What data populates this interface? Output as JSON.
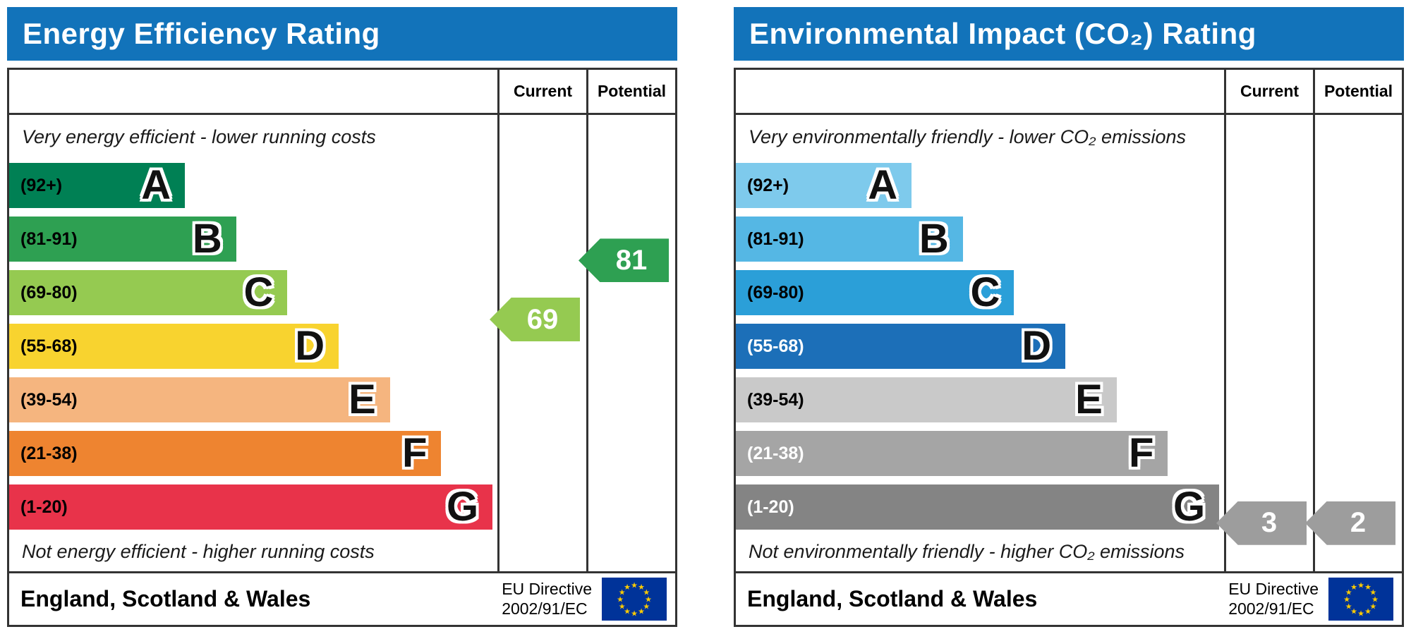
{
  "theme": {
    "header_bg": "#1273ba",
    "header_text": "#ffffff",
    "border": "#333333",
    "eu_flag_bg": "#003399",
    "eu_flag_stars": "#ffcc00"
  },
  "chart_data": [
    {
      "type": "bar",
      "chart_kind": "epc-rating-scale",
      "title": "Energy Efficiency Rating",
      "columns": [
        "Current",
        "Potential"
      ],
      "top_note": "Very energy efficient - lower running costs",
      "bottom_note": "Not energy efficient - higher running costs",
      "bands": [
        {
          "letter": "A",
          "label": "(92+)",
          "range_min": 92,
          "range_max": 100,
          "color": "#008054",
          "width_pct": 36,
          "label_color": "#000000"
        },
        {
          "letter": "B",
          "label": "(81-91)",
          "range_min": 81,
          "range_max": 91,
          "color": "#2ea052",
          "width_pct": 46.5,
          "label_color": "#000000"
        },
        {
          "letter": "C",
          "label": "(69-80)",
          "range_min": 69,
          "range_max": 80,
          "color": "#95ca51",
          "width_pct": 57,
          "label_color": "#000000"
        },
        {
          "letter": "D",
          "label": "(55-68)",
          "range_min": 55,
          "range_max": 68,
          "color": "#f8d32f",
          "width_pct": 67.5,
          "label_color": "#000000"
        },
        {
          "letter": "E",
          "label": "(39-54)",
          "range_min": 39,
          "range_max": 54,
          "color": "#f5b57f",
          "width_pct": 78,
          "label_color": "#000000"
        },
        {
          "letter": "F",
          "label": "(21-38)",
          "range_min": 21,
          "range_max": 38,
          "color": "#ee8430",
          "width_pct": 88.5,
          "label_color": "#000000"
        },
        {
          "letter": "G",
          "label": "(1-20)",
          "range_min": 1,
          "range_max": 20,
          "color": "#e8334a",
          "width_pct": 99,
          "label_color": "#000000"
        }
      ],
      "current": {
        "value": 69,
        "color": "#95ca51",
        "pos": 2.5
      },
      "potential": {
        "value": 81,
        "color": "#2ea052",
        "pos": 1.4
      },
      "footer": {
        "region": "England, Scotland & Wales",
        "directive_line1": "EU Directive",
        "directive_line2": "2002/91/EC"
      }
    },
    {
      "type": "bar",
      "chart_kind": "epc-rating-scale",
      "title": "Environmental Impact (CO₂) Rating",
      "columns": [
        "Current",
        "Potential"
      ],
      "top_note": "Very environmentally friendly - lower CO₂ emissions",
      "bottom_note": "Not environmentally friendly - higher CO₂ emissions",
      "bands": [
        {
          "letter": "A",
          "label": "(92+)",
          "range_min": 92,
          "range_max": 100,
          "color": "#7ecaec",
          "width_pct": 36,
          "label_color": "#000000"
        },
        {
          "letter": "B",
          "label": "(81-91)",
          "range_min": 81,
          "range_max": 91,
          "color": "#55b7e4",
          "width_pct": 46.5,
          "label_color": "#000000"
        },
        {
          "letter": "C",
          "label": "(69-80)",
          "range_min": 69,
          "range_max": 80,
          "color": "#2b9fd8",
          "width_pct": 57,
          "label_color": "#000000"
        },
        {
          "letter": "D",
          "label": "(55-68)",
          "range_min": 55,
          "range_max": 68,
          "color": "#1c6fb8",
          "width_pct": 67.5,
          "label_color": "#ffffff"
        },
        {
          "letter": "E",
          "label": "(39-54)",
          "range_min": 39,
          "range_max": 54,
          "color": "#c9c9c9",
          "width_pct": 78,
          "label_color": "#000000"
        },
        {
          "letter": "F",
          "label": "(21-38)",
          "range_min": 21,
          "range_max": 38,
          "color": "#a5a5a5",
          "width_pct": 88.5,
          "label_color": "#ffffff"
        },
        {
          "letter": "G",
          "label": "(1-20)",
          "range_min": 1,
          "range_max": 20,
          "color": "#848484",
          "width_pct": 99,
          "label_color": "#ffffff"
        }
      ],
      "current": {
        "value": 3,
        "color": "#9d9d9d",
        "pos": 6.3
      },
      "potential": {
        "value": 2,
        "color": "#9d9d9d",
        "pos": 6.3
      },
      "footer": {
        "region": "England, Scotland & Wales",
        "directive_line1": "EU Directive",
        "directive_line2": "2002/91/EC"
      }
    }
  ]
}
